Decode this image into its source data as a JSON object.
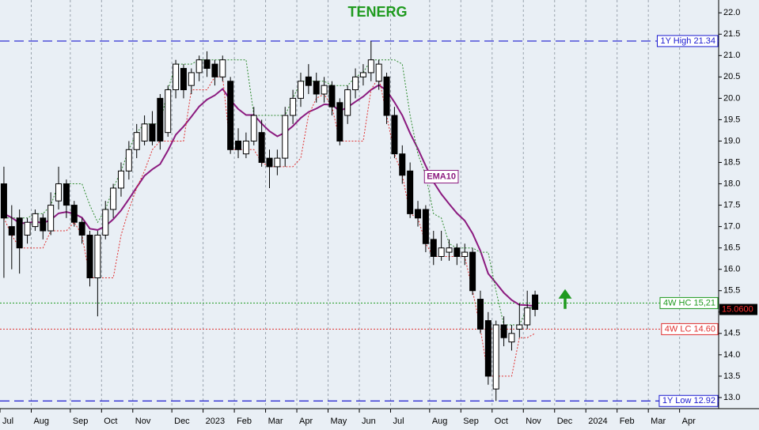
{
  "chart_data": {
    "type": "candlestick",
    "title": "TENERG",
    "categories": [
      "Jul",
      null,
      null,
      null,
      "Aug",
      null,
      null,
      null,
      null,
      "Sep",
      null,
      null,
      null,
      "Oct",
      null,
      null,
      null,
      "Nov",
      null,
      null,
      null,
      null,
      "Dec",
      null,
      null,
      null,
      "2023",
      null,
      null,
      null,
      "Feb",
      null,
      null,
      null,
      "Mar",
      null,
      null,
      null,
      "Apr",
      null,
      null,
      null,
      "May",
      null,
      null,
      null,
      "Jun",
      null,
      null,
      null,
      "Jul",
      null,
      null,
      null,
      null,
      "Aug",
      null,
      null,
      null,
      "Sep",
      null,
      null,
      null,
      "Oct",
      null,
      null,
      null,
      "Nov",
      null,
      null,
      null,
      "Dec",
      null,
      null,
      null,
      "2024",
      null,
      null,
      null,
      "Feb",
      null,
      null,
      null,
      "Mar",
      null,
      null,
      null,
      "Apr",
      null,
      null,
      null,
      null
    ],
    "open": [
      18.0,
      17.0,
      17.2,
      16.8,
      17.0,
      17.2,
      16.9,
      17.6,
      18.0,
      17.5,
      17.1,
      16.8,
      15.8,
      16.8,
      17.4,
      17.9,
      18.3,
      18.8,
      19.0,
      19.4,
      20.0,
      19.2,
      20.2,
      20.7,
      20.3,
      20.6,
      20.9,
      20.8,
      20.5,
      20.4,
      19.0,
      18.7,
      19.0,
      19.2,
      18.6,
      18.4,
      18.6,
      19.6,
      20.0,
      20.5,
      20.4,
      20.1,
      20.3,
      19.9,
      19.6,
      20.2,
      20.5,
      20.6,
      20.4,
      20.5,
      19.6,
      18.7,
      18.3,
      17.4,
      17.4,
      16.7,
      16.3,
      16.4,
      16.5,
      16.3,
      16.4,
      15.3,
      14.8,
      13.2,
      14.7,
      14.3,
      14.6,
      14.7,
      15.4,
      null,
      null,
      null,
      null,
      null,
      null,
      null,
      null,
      null,
      null,
      null,
      null,
      null,
      null,
      null,
      null,
      null,
      null,
      null,
      null,
      null,
      null,
      null
    ],
    "high": [
      18.4,
      17.5,
      17.4,
      17.2,
      17.4,
      17.3,
      17.8,
      18.4,
      18.1,
      17.6,
      17.2,
      16.9,
      16.9,
      17.6,
      18.0,
      18.5,
      19.0,
      19.4,
      19.6,
      19.7,
      20.1,
      20.3,
      20.9,
      20.8,
      20.7,
      21.0,
      21.1,
      20.9,
      21.0,
      20.5,
      19.3,
      19.2,
      19.8,
      19.5,
      18.8,
      18.8,
      19.8,
      20.2,
      20.6,
      20.8,
      20.6,
      20.5,
      20.4,
      20.0,
      20.3,
      20.7,
      20.8,
      21.34,
      20.9,
      20.6,
      19.8,
      18.9,
      18.5,
      17.6,
      17.5,
      16.9,
      16.9,
      16.7,
      16.6,
      16.6,
      16.5,
      15.5,
      15.0,
      14.8,
      14.9,
      14.7,
      15.2,
      15.5,
      15.5,
      null,
      null,
      null,
      null,
      null,
      null,
      null,
      null,
      null,
      null,
      null,
      null,
      null,
      null,
      null,
      null,
      null,
      null,
      null,
      null,
      null,
      null,
      null
    ],
    "low": [
      15.8,
      16.0,
      15.9,
      16.6,
      16.9,
      16.7,
      16.8,
      17.4,
      17.2,
      17.0,
      16.6,
      15.6,
      14.9,
      16.7,
      17.2,
      17.7,
      18.1,
      18.6,
      18.9,
      18.9,
      18.8,
      19.1,
      20.0,
      20.0,
      20.1,
      20.4,
      20.5,
      20.3,
      20.4,
      18.7,
      18.6,
      18.6,
      18.9,
      18.4,
      17.9,
      18.2,
      18.4,
      19.4,
      19.8,
      20.1,
      19.9,
      19.9,
      19.6,
      18.9,
      19.4,
      20.0,
      20.3,
      20.4,
      20.2,
      19.4,
      18.6,
      18.0,
      17.2,
      17.0,
      16.4,
      16.1,
      16.2,
      16.2,
      16.1,
      16.1,
      15.4,
      14.5,
      13.3,
      12.92,
      14.2,
      14.1,
      14.4,
      14.6,
      14.9,
      null,
      null,
      null,
      null,
      null,
      null,
      null,
      null,
      null,
      null,
      null,
      null,
      null,
      null,
      null,
      null,
      null,
      null,
      null,
      null,
      null,
      null,
      null
    ],
    "close": [
      17.2,
      16.8,
      16.5,
      17.1,
      17.3,
      16.9,
      17.5,
      18.0,
      17.5,
      17.1,
      16.8,
      15.8,
      16.8,
      17.4,
      17.9,
      18.3,
      18.8,
      19.2,
      19.4,
      19.0,
      19.0,
      20.2,
      20.8,
      20.2,
      20.6,
      20.9,
      20.7,
      20.5,
      20.9,
      18.8,
      18.8,
      19.0,
      19.6,
      18.5,
      18.4,
      18.6,
      19.6,
      20.0,
      20.4,
      20.3,
      20.1,
      20.3,
      19.8,
      19.0,
      20.2,
      20.5,
      20.6,
      20.9,
      20.8,
      19.6,
      18.7,
      18.2,
      17.3,
      17.2,
      16.6,
      16.3,
      16.5,
      16.5,
      16.3,
      16.4,
      15.5,
      14.6,
      13.5,
      14.7,
      14.4,
      14.5,
      14.7,
      15.1,
      15.06,
      null,
      null,
      null,
      null,
      null,
      null,
      null,
      null,
      null,
      null,
      null,
      null,
      null,
      null,
      null,
      null,
      null,
      null,
      null,
      null,
      null,
      null,
      null
    ],
    "lines": [
      {
        "name": "EMA10",
        "color": "#8b1a7f",
        "values": [
          17.3,
          17.21,
          17.08,
          17.08,
          17.12,
          17.08,
          17.16,
          17.31,
          17.34,
          17.3,
          17.21,
          16.95,
          16.92,
          17.01,
          17.17,
          17.38,
          17.64,
          17.92,
          18.19,
          18.34,
          18.46,
          18.78,
          19.15,
          19.34,
          19.57,
          19.81,
          19.97,
          20.07,
          20.22,
          19.96,
          19.75,
          19.61,
          19.61,
          19.41,
          19.23,
          19.11,
          19.2,
          19.35,
          19.54,
          19.68,
          19.76,
          19.86,
          19.85,
          19.7,
          19.79,
          19.92,
          20.04,
          20.2,
          20.31,
          20.18,
          19.91,
          19.6,
          19.18,
          18.82,
          18.42,
          18.04,
          17.76,
          17.53,
          17.31,
          17.14,
          16.84,
          16.43,
          15.9,
          15.68,
          15.45,
          15.28,
          15.17,
          15.16,
          15.14,
          null,
          null,
          null,
          null,
          null,
          null,
          null,
          null,
          null,
          null,
          null,
          null,
          null,
          null,
          null,
          null,
          null,
          null,
          null,
          null,
          null,
          null,
          null
        ]
      },
      {
        "color": "#2e8b2e",
        "values": [
          17.2,
          17.2,
          17.2,
          17.2,
          17.3,
          17.3,
          17.5,
          18.0,
          18.0,
          18.0,
          18.0,
          17.5,
          17.1,
          17.4,
          17.9,
          18.3,
          18.8,
          19.2,
          19.4,
          19.4,
          19.4,
          20.2,
          20.8,
          20.8,
          20.8,
          20.9,
          20.9,
          20.9,
          20.9,
          20.9,
          20.9,
          20.9,
          19.6,
          19.6,
          19.6,
          19.6,
          19.6,
          20.0,
          20.4,
          20.4,
          20.4,
          20.4,
          20.3,
          20.3,
          20.3,
          20.5,
          20.6,
          20.9,
          20.9,
          20.9,
          20.9,
          20.8,
          19.6,
          18.7,
          18.2,
          17.3,
          17.2,
          16.6,
          16.5,
          16.5,
          16.5,
          16.4,
          16.4,
          15.5,
          14.7,
          14.7,
          14.7,
          15.1,
          15.1,
          null,
          null,
          null,
          null,
          null,
          null,
          null,
          null,
          null,
          null,
          null,
          null,
          null,
          null,
          null,
          null,
          null,
          null,
          null,
          null,
          null,
          null,
          null
        ]
      },
      {
        "color": "#e03030",
        "values": [
          17.2,
          16.8,
          16.5,
          16.5,
          16.5,
          16.5,
          16.9,
          16.9,
          16.9,
          17.1,
          16.8,
          15.8,
          15.8,
          15.8,
          15.8,
          16.8,
          17.4,
          17.9,
          18.3,
          18.8,
          19.0,
          19.0,
          19.0,
          19.0,
          20.2,
          20.2,
          20.2,
          20.5,
          20.5,
          18.8,
          18.8,
          18.8,
          18.8,
          18.5,
          18.4,
          18.4,
          18.4,
          18.4,
          18.6,
          19.6,
          20.0,
          20.1,
          19.8,
          19.0,
          19.0,
          19.0,
          19.0,
          20.2,
          20.5,
          19.6,
          18.7,
          18.2,
          17.3,
          17.2,
          16.6,
          16.3,
          16.3,
          16.3,
          16.3,
          16.3,
          15.5,
          14.6,
          13.5,
          13.5,
          13.5,
          13.5,
          14.4,
          14.4,
          14.5,
          null,
          null,
          null,
          null,
          null,
          null,
          null,
          null,
          null,
          null,
          null,
          null,
          null,
          null,
          null,
          null,
          null,
          null,
          null,
          null,
          null,
          null,
          null
        ]
      }
    ],
    "reference_lines": [
      {
        "value": 21.34,
        "label": "1Y High 21.34",
        "color": "#1a1ad0"
      },
      {
        "value": 15.21,
        "label": "4W HC 15,21",
        "color": "#1f9a1f"
      },
      {
        "value": 14.6,
        "label": "4W LC 14.60",
        "color": "#e03030"
      },
      {
        "value": 12.92,
        "label": "1Y Low 12.92",
        "color": "#1a1ad0"
      }
    ],
    "last_price": {
      "value": 15.06,
      "label": "15.0600"
    },
    "ylim": [
      12.74,
      22.3
    ],
    "yticks": [
      {
        "value": 13,
        "label": "13.0"
      },
      13.5,
      {
        "value": 14,
        "label": "14.0"
      },
      14.5,
      {
        "value": 15,
        "label": "15.0"
      },
      15.5,
      {
        "value": 16,
        "label": "16.0"
      },
      16.5,
      {
        "value": 17,
        "label": "17.0"
      },
      17.5,
      {
        "value": 18,
        "label": "18.0"
      },
      18.5,
      {
        "value": 19,
        "label": "19.0"
      },
      19.5,
      {
        "value": 20,
        "label": "20.0"
      },
      20.5,
      {
        "value": 21,
        "label": "21.0"
      },
      21.5,
      {
        "value": 22,
        "label": "22.0"
      }
    ],
    "grid": true
  }
}
